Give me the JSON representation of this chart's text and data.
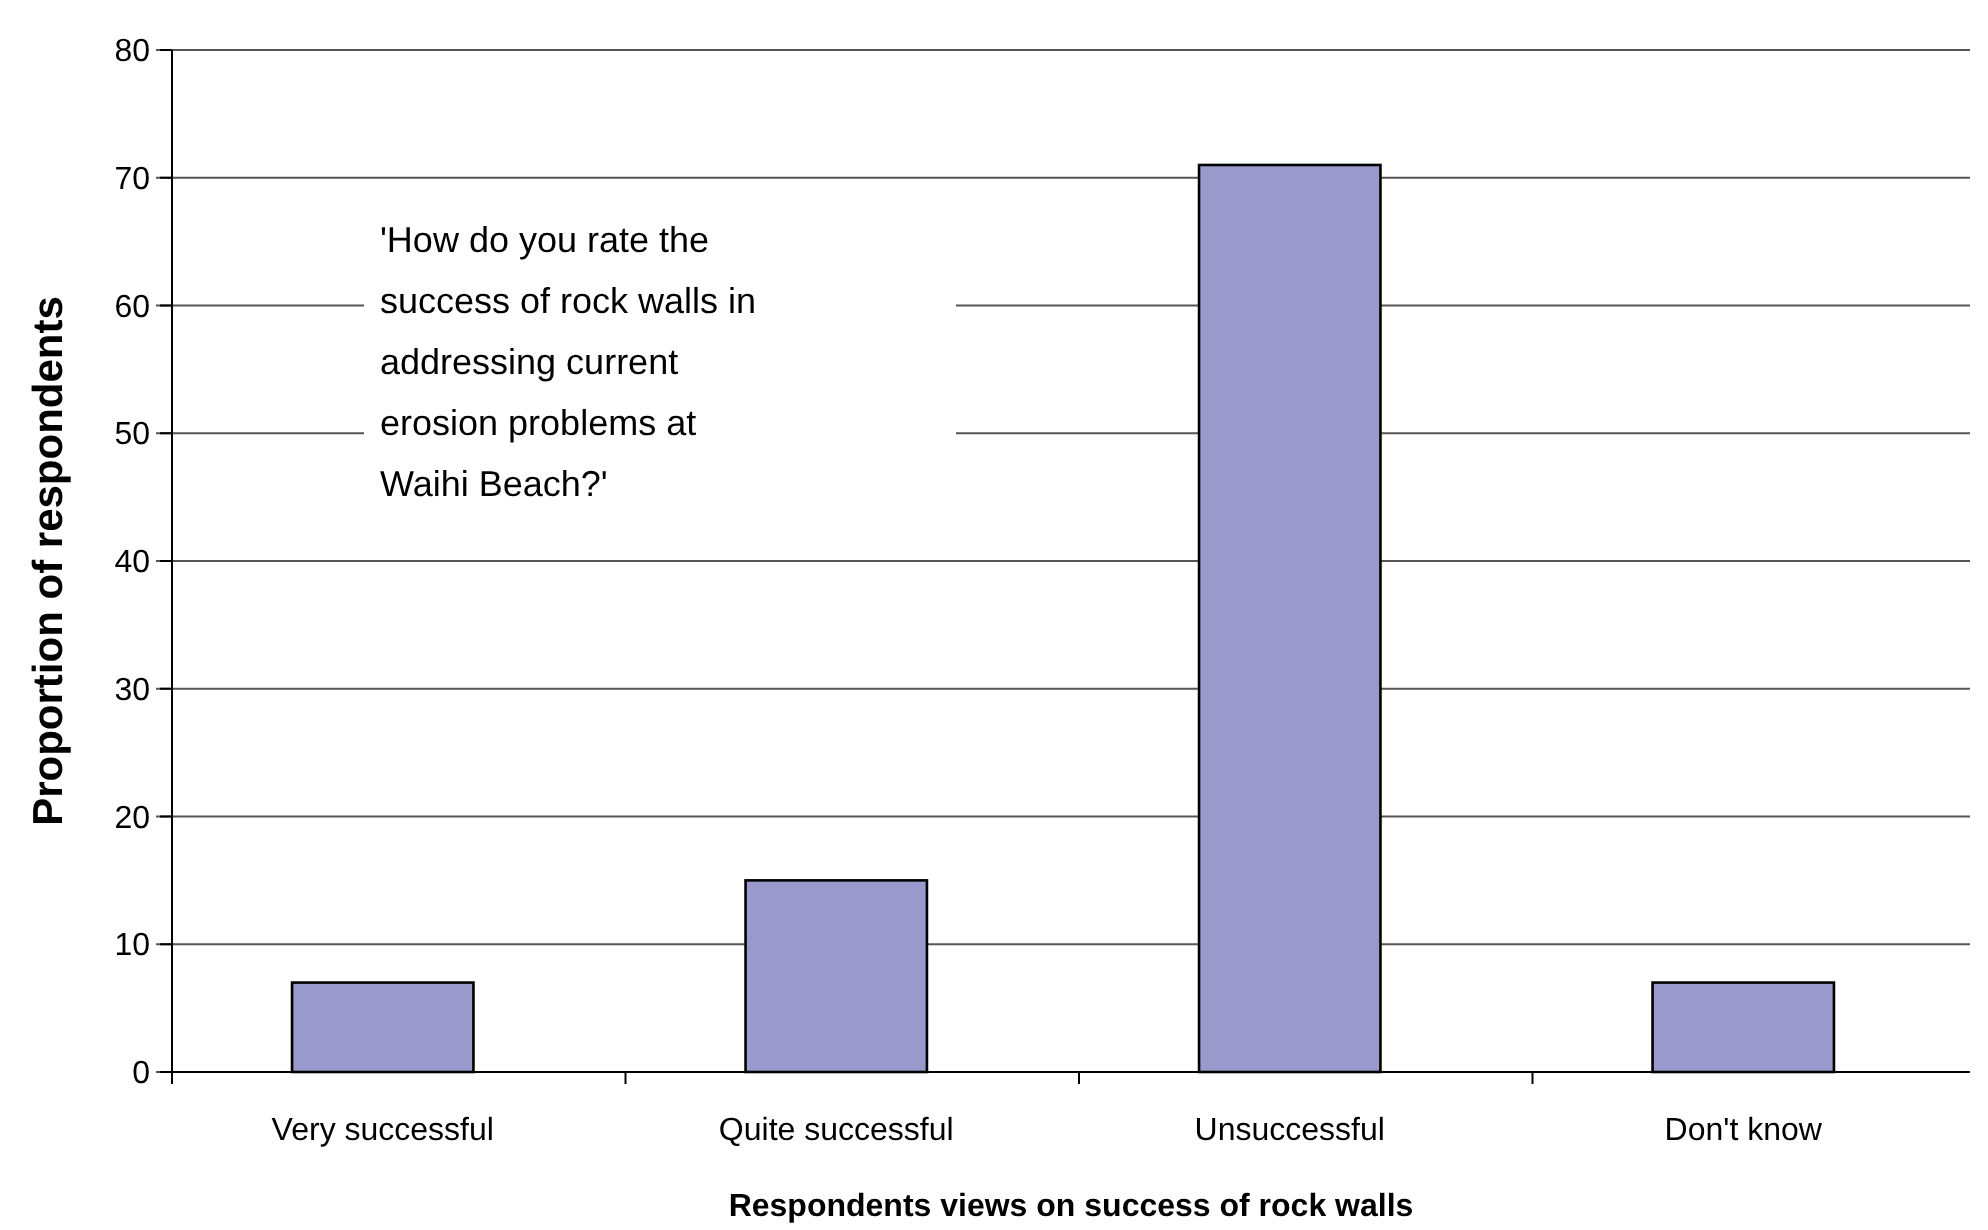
{
  "chart_data": {
    "type": "bar",
    "xlabel": "Respondents views on success of rock walls",
    "ylabel": "Proportion of respondents",
    "categories": [
      "Very successful",
      "Quite successful",
      "Unsuccessful",
      "Don't know"
    ],
    "values": [
      7,
      15,
      71,
      7
    ],
    "color": "#9999cc",
    "ylim": [
      0,
      80
    ],
    "yticks": [
      0,
      10,
      20,
      30,
      40,
      50,
      60,
      70,
      80
    ],
    "grid": "y",
    "annotations": [
      "'How do you rate the success of rock walls in addressing current erosion problems at Waihi Beach?'"
    ]
  }
}
